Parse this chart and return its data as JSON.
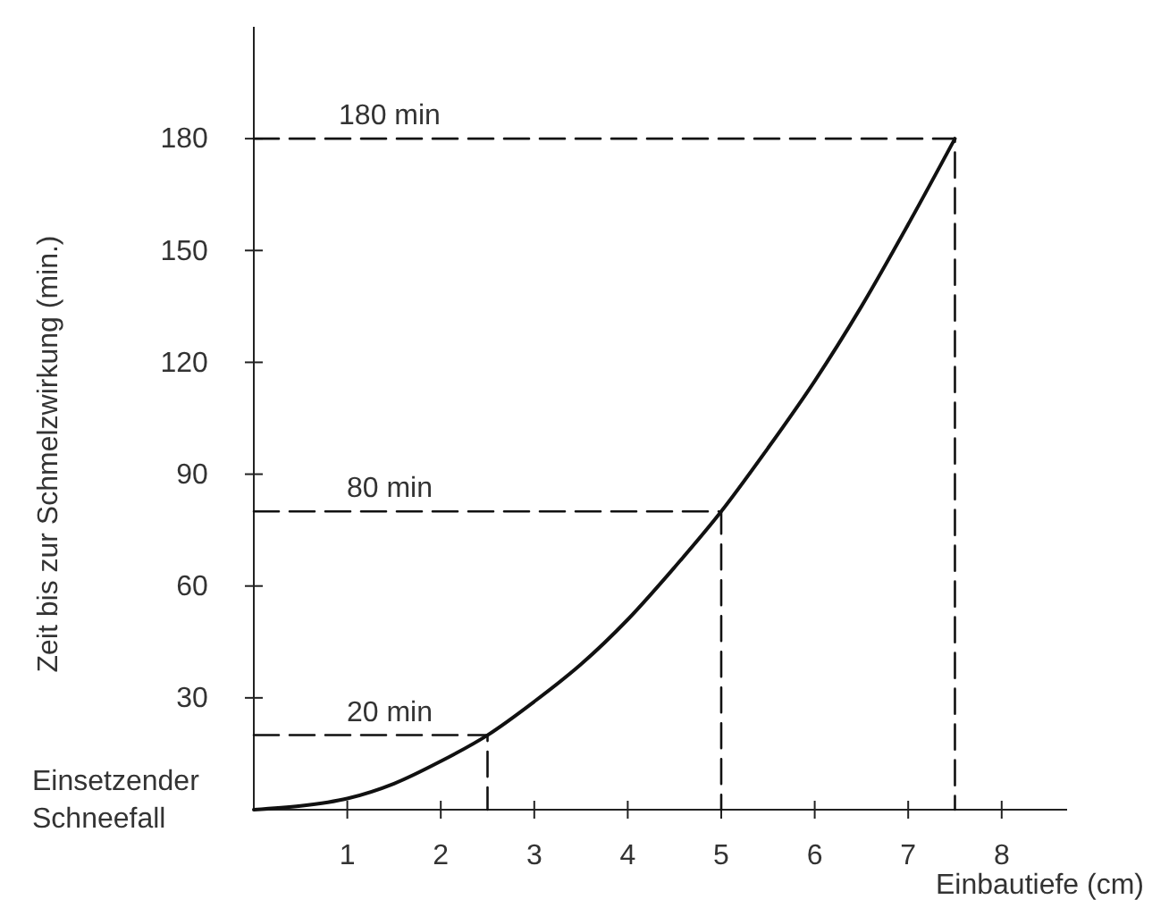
{
  "chart_data": {
    "type": "line",
    "xlabel": "Einbautiefe (cm)",
    "ylabel": "Zeit bis zur Schmelzwirkung (min.)",
    "xlim": [
      0,
      8.7
    ],
    "ylim": [
      0,
      210
    ],
    "xticks": [
      1,
      2,
      3,
      4,
      5,
      6,
      7,
      8
    ],
    "yticks": [
      30,
      60,
      90,
      120,
      150,
      180
    ],
    "series": [
      {
        "color": "#111111",
        "line_style": "solid",
        "x": [
          0,
          0.5,
          1,
          1.5,
          2,
          2.5,
          3,
          3.5,
          4,
          4.5,
          5,
          5.5,
          6,
          6.5,
          7,
          7.5
        ],
        "values": [
          0,
          1,
          3,
          7,
          13,
          20,
          29,
          39,
          51,
          65,
          80,
          97,
          115,
          135,
          157,
          180
        ]
      },
      {
        "name": "20 min",
        "color": "#111111",
        "line_style": "dashed",
        "x": [
          0,
          2.5,
          2.5
        ],
        "values": [
          20,
          20,
          0
        ]
      },
      {
        "name": "80 min",
        "color": "#111111",
        "line_style": "dashed",
        "x": [
          0,
          5,
          5
        ],
        "values": [
          80,
          80,
          0
        ]
      },
      {
        "name": "180 min",
        "color": "#111111",
        "line_style": "dashed",
        "x": [
          0,
          7.5,
          7.5
        ],
        "values": [
          180,
          180,
          0
        ]
      }
    ],
    "annotations": [
      "Einsetzender Schneefall"
    ]
  }
}
